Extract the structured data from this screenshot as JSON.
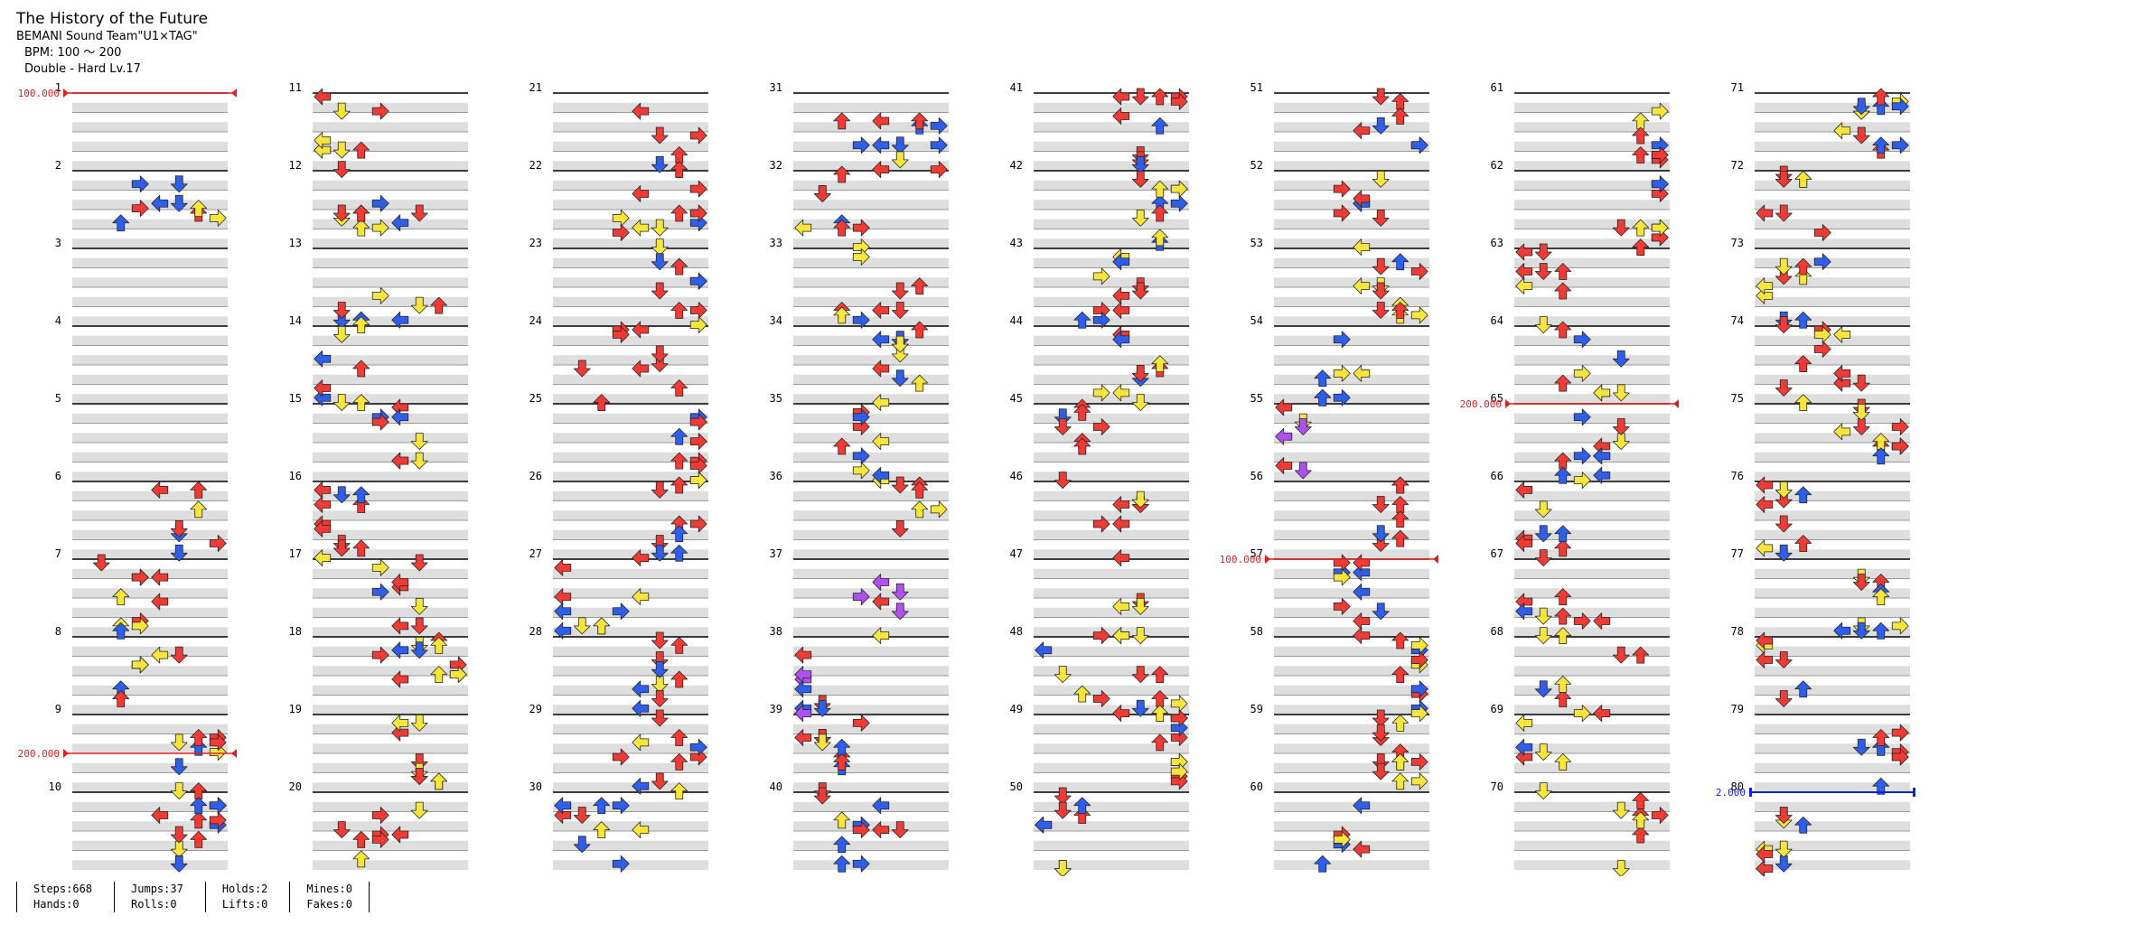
{
  "song": {
    "title": "The History of the Future",
    "artist": "BEMANI Sound Team\"U1×TAG\"",
    "bpm_label": "BPM: 100 ～ 200",
    "difficulty_label": "Double - Hard  Lv.17"
  },
  "stats": {
    "steps": "Steps:668",
    "hands": "Hands:0",
    "jumps": "Jumps:37",
    "rolls": "Rolls:0",
    "holds": "Holds:2",
    "lifts": "Lifts:0",
    "mines": "Mines:0",
    "fakes": "Fakes:0"
  },
  "colors": {
    "quarter": "#ef3b36",
    "eighth": "#2f5fea",
    "sixteenth": "#f6e53c",
    "triplet": "#b050f0",
    "hold": "#ef8a3a",
    "bpm_line": "#e02020",
    "stop_line": "#1020e0"
  },
  "chart": {
    "measures_per_column": 10,
    "total_measures": 80,
    "bpm_changes": [
      {
        "measure": 1,
        "beat": 0,
        "label": "100.000"
      },
      {
        "measure": 9,
        "beat": 2,
        "label": "200.000"
      },
      {
        "measure": 57,
        "beat": 0,
        "label": "100.000"
      },
      {
        "measure": 65,
        "beat": 0,
        "label": "200.000"
      }
    ],
    "stops": [
      {
        "measure": 80,
        "beat": 0,
        "label": "2.000"
      }
    ]
  }
}
